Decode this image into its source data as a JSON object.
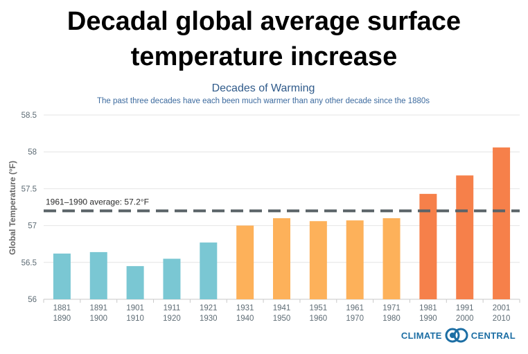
{
  "slide_title": "Decadal global average surface temperature increase",
  "chart_data": {
    "type": "bar",
    "title": "Decades of Warming",
    "subtitle": "The past three decades have each been much warmer than any other decade since the 1880s",
    "ylabel": "Global Temperature (°F)",
    "xlabel": "",
    "ylim": [
      56,
      58.5
    ],
    "yticks": [
      "56",
      "56.5",
      "57",
      "57.5",
      "58",
      "58.5"
    ],
    "ytick_values": [
      56,
      56.5,
      57,
      57.5,
      58,
      58.5
    ],
    "grid": true,
    "categories": [
      [
        "1881",
        "1890"
      ],
      [
        "1891",
        "1900"
      ],
      [
        "1901",
        "1910"
      ],
      [
        "1911",
        "1920"
      ],
      [
        "1921",
        "1930"
      ],
      [
        "1931",
        "1940"
      ],
      [
        "1941",
        "1950"
      ],
      [
        "1951",
        "1960"
      ],
      [
        "1961",
        "1970"
      ],
      [
        "1971",
        "1980"
      ],
      [
        "1981",
        "1990"
      ],
      [
        "1991",
        "2000"
      ],
      [
        "2001",
        "2010"
      ]
    ],
    "values": [
      56.62,
      56.64,
      56.45,
      56.55,
      56.77,
      57.0,
      57.1,
      57.06,
      57.07,
      57.1,
      57.43,
      57.68,
      58.06
    ],
    "bar_colors": [
      "#7ac7d3",
      "#7ac7d3",
      "#7ac7d3",
      "#7ac7d3",
      "#7ac7d3",
      "#fdb15a",
      "#fdb15a",
      "#fdb15a",
      "#fdb15a",
      "#fdb15a",
      "#f6804a",
      "#f6804a",
      "#f6804a"
    ],
    "reference_line": {
      "value": 57.2,
      "label": "1961–1990 average: 57.2°F",
      "color": "#5a6368"
    }
  },
  "logo": {
    "left_text": "CLIMATE",
    "right_text": "CENTRAL"
  },
  "colors": {
    "title": "#2f5a8a",
    "subtitle": "#3c6a9e",
    "axis": "#5d6b74",
    "grid": "#e4e4e4"
  }
}
